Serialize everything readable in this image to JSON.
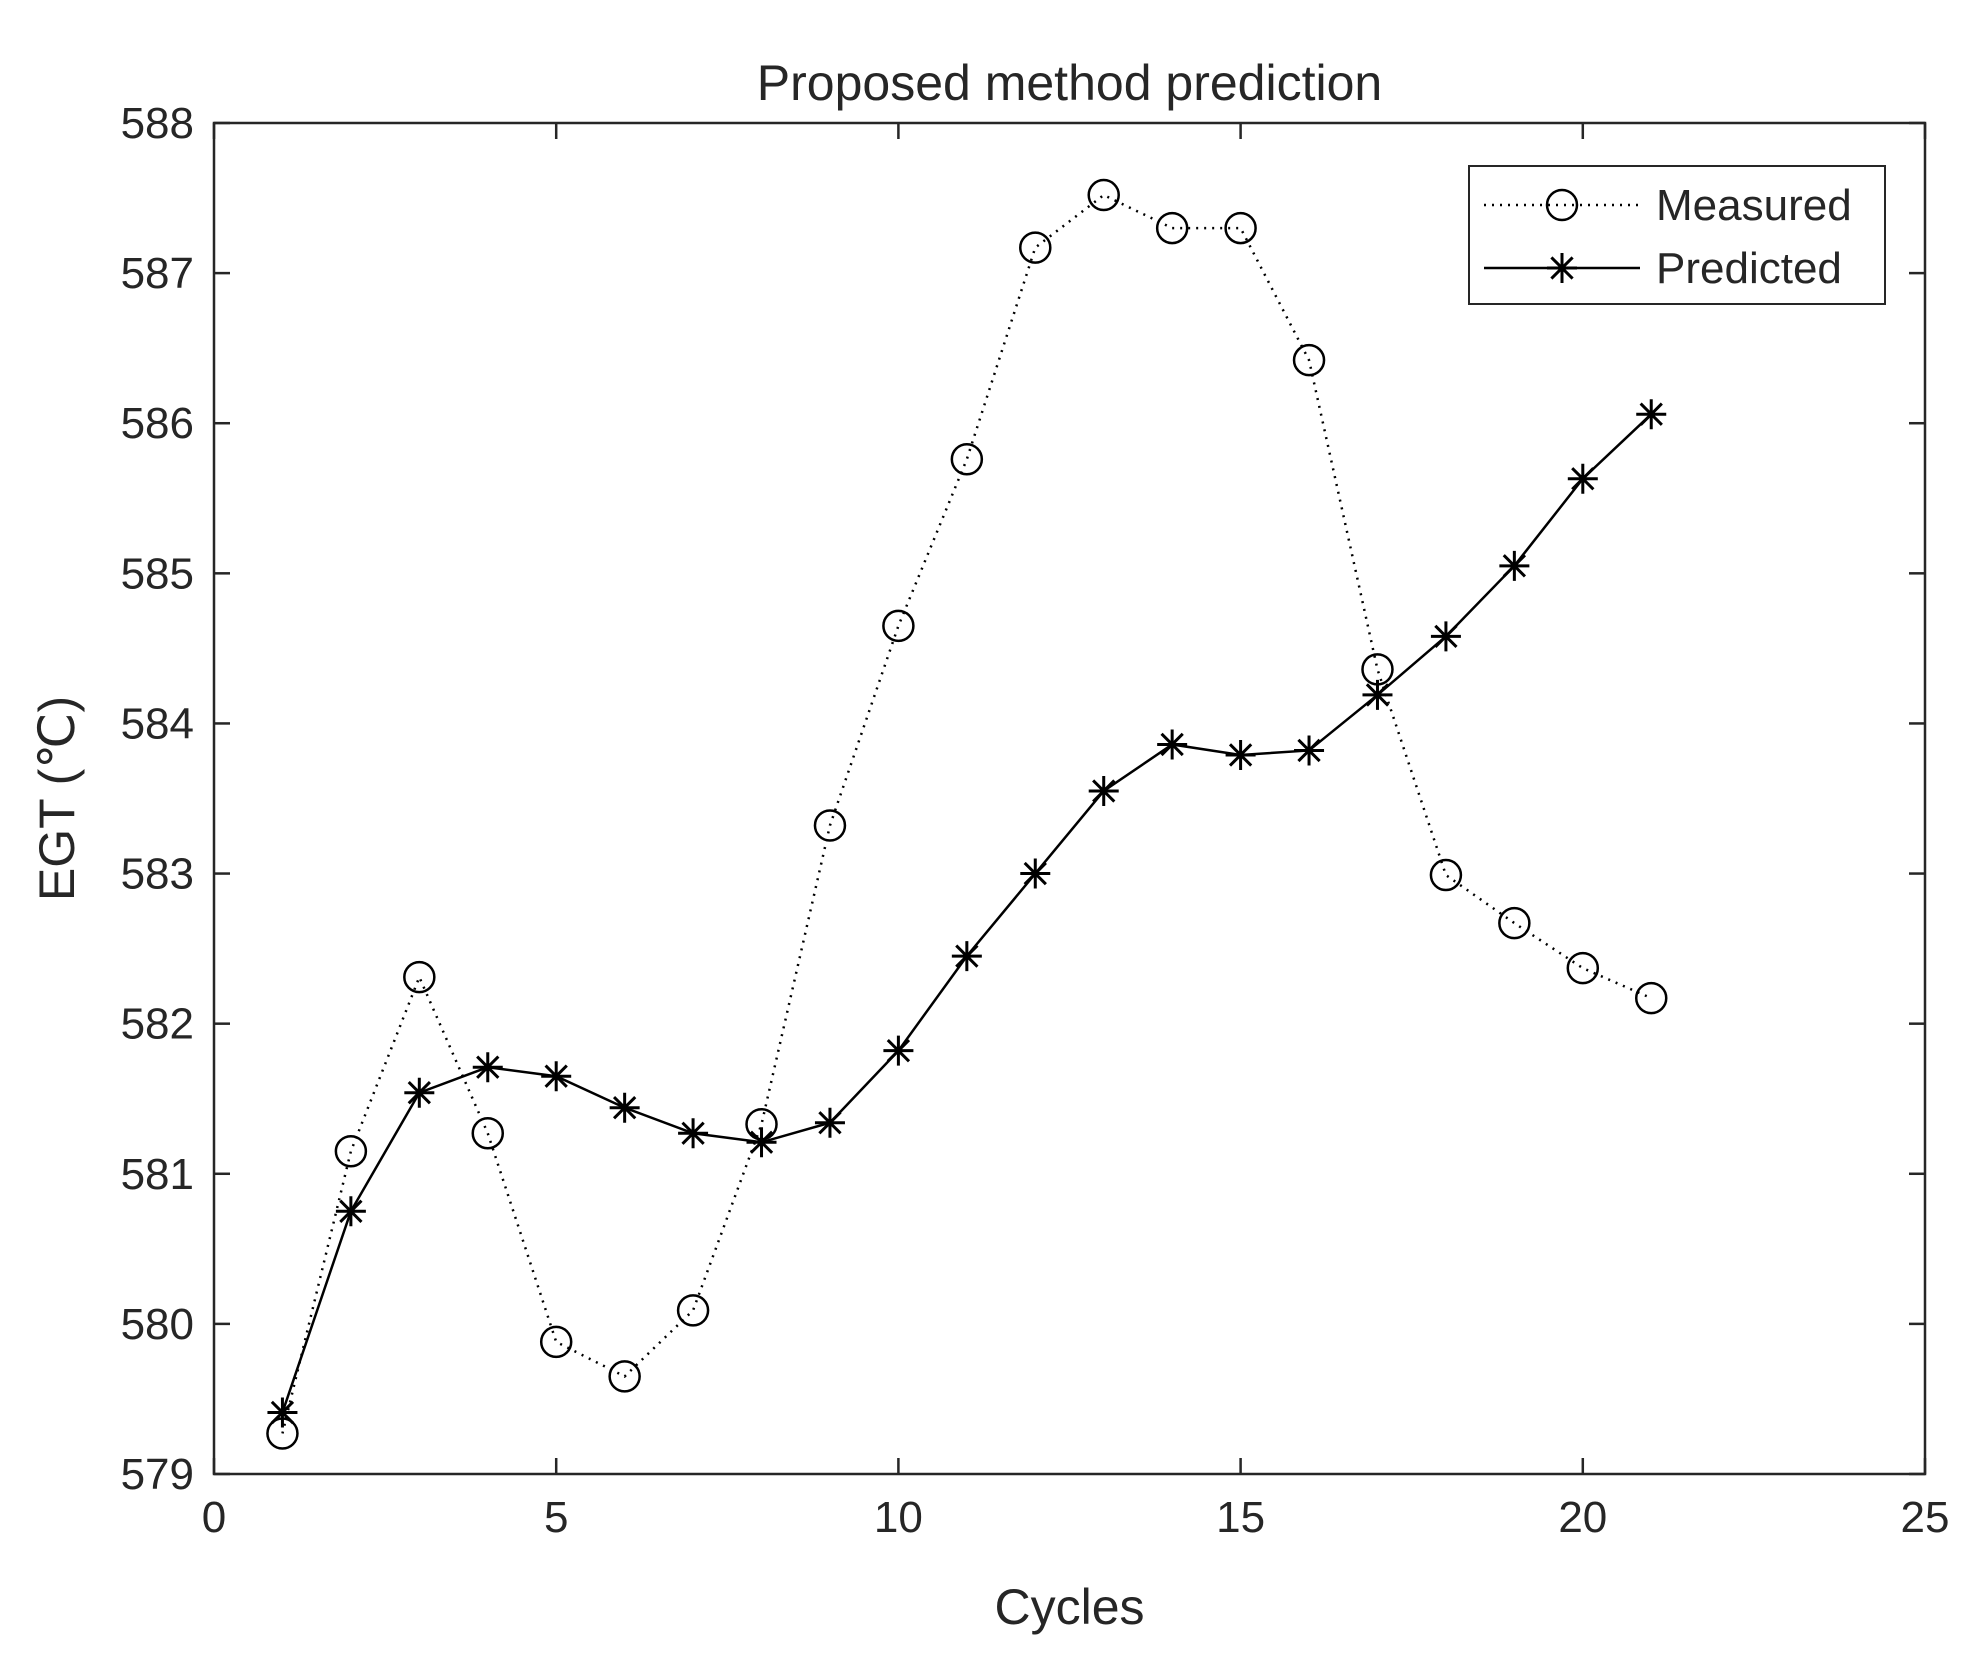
{
  "chart_data": {
    "type": "line",
    "title": "Proposed method prediction",
    "xlabel": "Cycles",
    "ylabel": "EGT (℃)",
    "xlim": [
      0,
      25
    ],
    "ylim": [
      579,
      588
    ],
    "xticks": [
      0,
      5,
      10,
      15,
      20,
      25
    ],
    "yticks": [
      579,
      580,
      581,
      582,
      583,
      584,
      585,
      586,
      587,
      588
    ],
    "grid": false,
    "legend_position": "top-right",
    "x": [
      1,
      2,
      3,
      4,
      5,
      6,
      7,
      8,
      9,
      10,
      11,
      12,
      13,
      14,
      15,
      16,
      17,
      18,
      19,
      20,
      21
    ],
    "series": [
      {
        "name": "Measured",
        "line_style": "dotted",
        "marker": "circle",
        "values": [
          579.27,
          581.15,
          582.31,
          581.27,
          579.88,
          579.65,
          580.09,
          581.33,
          583.32,
          584.65,
          585.76,
          587.17,
          587.52,
          587.3,
          587.3,
          586.42,
          584.36,
          582.99,
          582.67,
          582.37,
          582.17
        ]
      },
      {
        "name": "Predicted",
        "line_style": "solid",
        "marker": "star",
        "values": [
          579.41,
          580.75,
          581.54,
          581.71,
          581.65,
          581.44,
          581.27,
          581.21,
          581.34,
          581.82,
          582.45,
          583.0,
          583.55,
          583.86,
          583.79,
          583.82,
          584.19,
          584.58,
          585.05,
          585.63,
          586.06
        ]
      }
    ],
    "colors": {
      "line": "#000000",
      "axis": "#262626",
      "background": "#ffffff"
    }
  }
}
